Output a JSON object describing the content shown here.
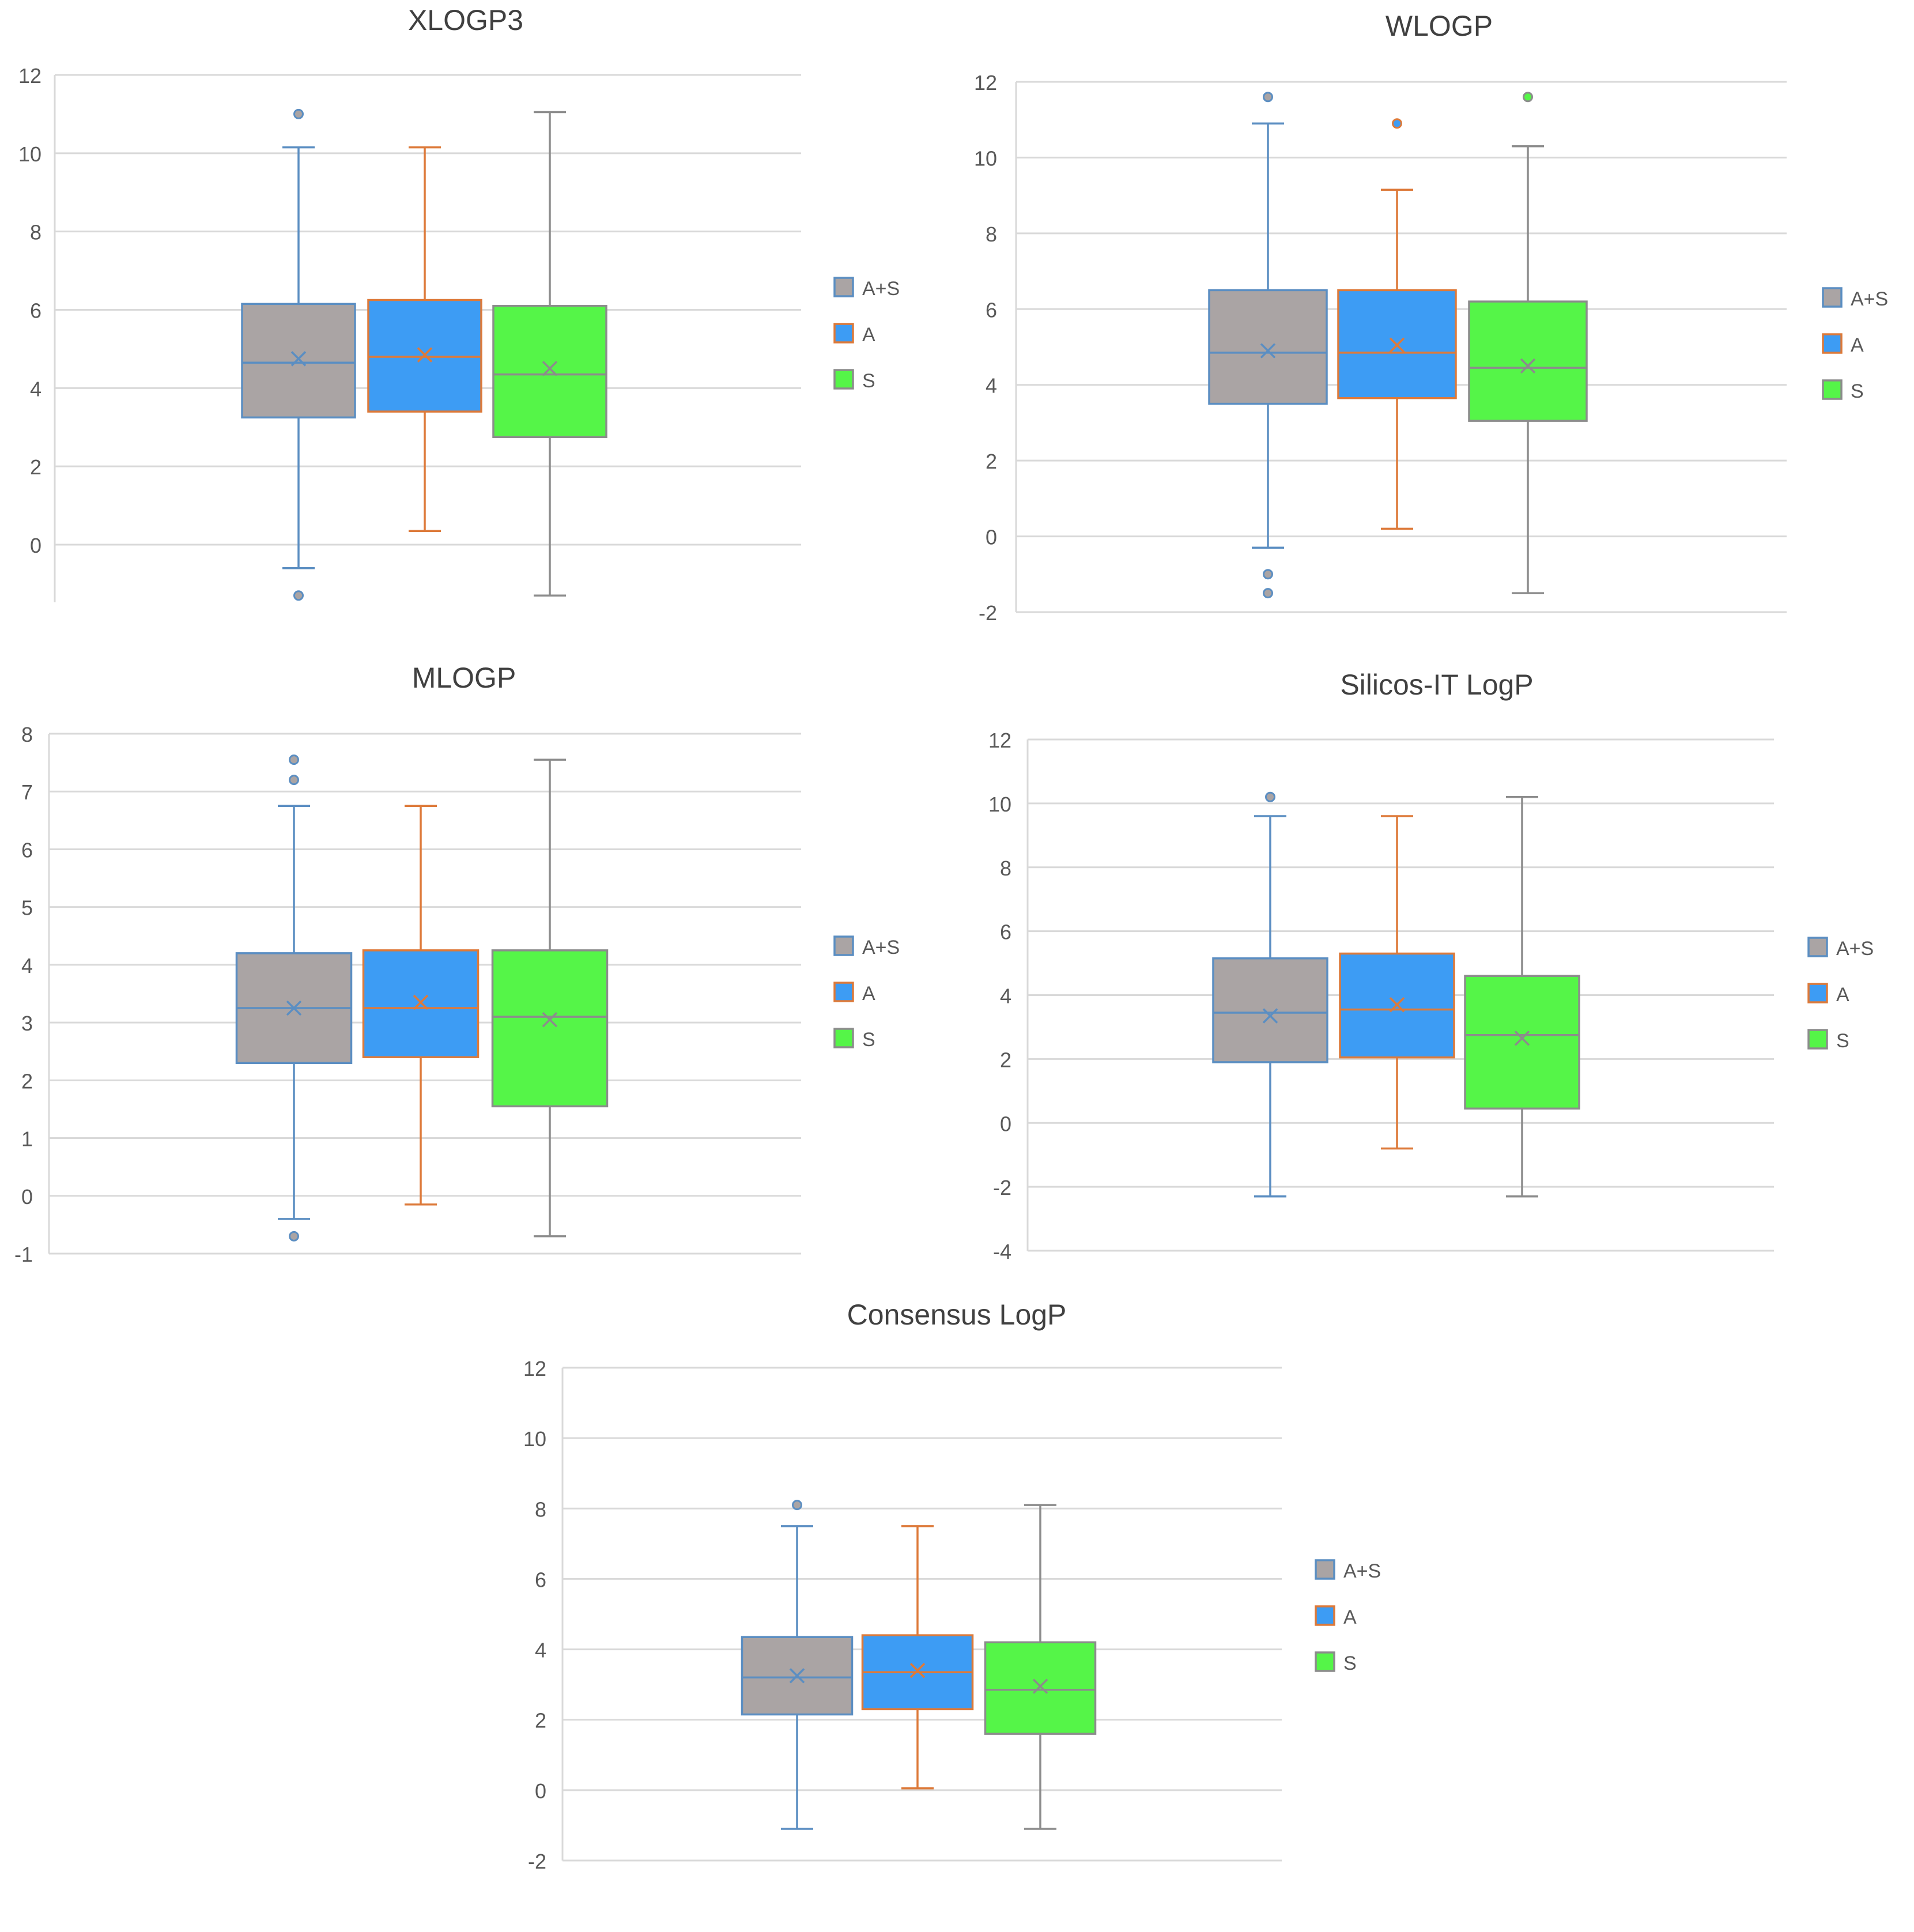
{
  "colors": {
    "background": "#ffffff",
    "grid": "#d9d9d9",
    "axis_text": "#595959",
    "title_text": "#404040",
    "series": [
      {
        "fill": "#aaa4a4",
        "stroke": "#5b8ec2"
      },
      {
        "fill": "#3d9cf4",
        "stroke": "#dd7a3a"
      },
      {
        "fill": "#55f548",
        "stroke": "#8c8c8c"
      }
    ]
  },
  "chart_data": [
    {
      "type": "boxplot",
      "title": "XLOGP3",
      "xlabel": "",
      "ylabel": "",
      "ylim": [
        -1.5,
        12
      ],
      "yticks": [
        0,
        2,
        4,
        6,
        8,
        10,
        12
      ],
      "grid": true,
      "legend": "right",
      "series": [
        {
          "name": "A+S",
          "whisker_low": -0.6,
          "q1": 3.25,
          "median": 4.65,
          "q3": 6.15,
          "whisker_high": 10.15,
          "mean": 4.75,
          "outliers": [
            11.0,
            -1.3
          ]
        },
        {
          "name": "A",
          "whisker_low": 0.35,
          "q1": 3.4,
          "median": 4.8,
          "q3": 6.25,
          "whisker_high": 10.15,
          "mean": 4.85,
          "outliers": []
        },
        {
          "name": "S",
          "whisker_low": -1.3,
          "q1": 2.75,
          "median": 4.35,
          "q3": 6.1,
          "whisker_high": 11.05,
          "mean": 4.5,
          "outliers": []
        }
      ]
    },
    {
      "type": "boxplot",
      "title": "WLOGP",
      "xlabel": "",
      "ylabel": "",
      "ylim": [
        -2,
        12
      ],
      "yticks": [
        -2,
        0,
        2,
        4,
        6,
        8,
        10,
        12
      ],
      "grid": true,
      "legend": "right",
      "series": [
        {
          "name": "A+S",
          "whisker_low": -0.3,
          "q1": 3.5,
          "median": 4.85,
          "q3": 6.5,
          "whisker_high": 10.9,
          "mean": 4.9,
          "outliers": [
            11.6,
            -1.0,
            -1.5
          ]
        },
        {
          "name": "A",
          "whisker_low": 0.2,
          "q1": 3.65,
          "median": 4.85,
          "q3": 6.5,
          "whisker_high": 9.15,
          "mean": 5.05,
          "outliers": [
            10.9
          ]
        },
        {
          "name": "S",
          "whisker_low": -1.5,
          "q1": 3.05,
          "median": 4.45,
          "q3": 6.2,
          "whisker_high": 10.3,
          "mean": 4.5,
          "outliers": [
            11.6
          ]
        }
      ]
    },
    {
      "type": "boxplot",
      "title": "MLOGP",
      "xlabel": "",
      "ylabel": "",
      "ylim": [
        -1,
        8
      ],
      "yticks": [
        -1,
        0,
        1,
        2,
        3,
        4,
        5,
        6,
        7,
        8
      ],
      "grid": true,
      "legend": "right",
      "series": [
        {
          "name": "A+S",
          "whisker_low": -0.4,
          "q1": 2.3,
          "median": 3.25,
          "q3": 4.2,
          "whisker_high": 6.75,
          "mean": 3.25,
          "outliers": [
            7.55,
            7.2,
            -0.7
          ]
        },
        {
          "name": "A",
          "whisker_low": -0.15,
          "q1": 2.4,
          "median": 3.25,
          "q3": 4.25,
          "whisker_high": 6.75,
          "mean": 3.35,
          "outliers": []
        },
        {
          "name": "S",
          "whisker_low": -0.7,
          "q1": 1.55,
          "median": 3.1,
          "q3": 4.25,
          "whisker_high": 7.55,
          "mean": 3.05,
          "outliers": []
        }
      ]
    },
    {
      "type": "boxplot",
      "title": "Silicos-IT LogP",
      "xlabel": "",
      "ylabel": "",
      "ylim": [
        -4,
        12
      ],
      "yticks": [
        -4,
        -2,
        0,
        2,
        4,
        6,
        8,
        10,
        12
      ],
      "grid": true,
      "legend": "right",
      "series": [
        {
          "name": "A+S",
          "whisker_low": -2.3,
          "q1": 1.9,
          "median": 3.45,
          "q3": 5.15,
          "whisker_high": 9.6,
          "mean": 3.35,
          "outliers": [
            10.2
          ]
        },
        {
          "name": "A",
          "whisker_low": -0.8,
          "q1": 2.05,
          "median": 3.55,
          "q3": 5.3,
          "whisker_high": 9.6,
          "mean": 3.7,
          "outliers": []
        },
        {
          "name": "S",
          "whisker_low": -2.3,
          "q1": 0.45,
          "median": 2.75,
          "q3": 4.6,
          "whisker_high": 10.2,
          "mean": 2.65,
          "outliers": []
        }
      ]
    },
    {
      "type": "boxplot",
      "title": "Consensus LogP",
      "xlabel": "",
      "ylabel": "",
      "ylim": [
        -2,
        12
      ],
      "yticks": [
        -2,
        0,
        2,
        4,
        6,
        8,
        10,
        12
      ],
      "grid": true,
      "legend": "right",
      "series": [
        {
          "name": "A+S",
          "whisker_low": -1.1,
          "q1": 2.15,
          "median": 3.2,
          "q3": 4.35,
          "whisker_high": 7.5,
          "mean": 3.25,
          "outliers": [
            8.1
          ]
        },
        {
          "name": "A",
          "whisker_low": 0.05,
          "q1": 2.3,
          "median": 3.35,
          "q3": 4.4,
          "whisker_high": 7.5,
          "mean": 3.4,
          "outliers": []
        },
        {
          "name": "S",
          "whisker_low": -1.1,
          "q1": 1.6,
          "median": 2.85,
          "q3": 4.2,
          "whisker_high": 8.1,
          "mean": 2.95,
          "outliers": []
        }
      ]
    }
  ]
}
